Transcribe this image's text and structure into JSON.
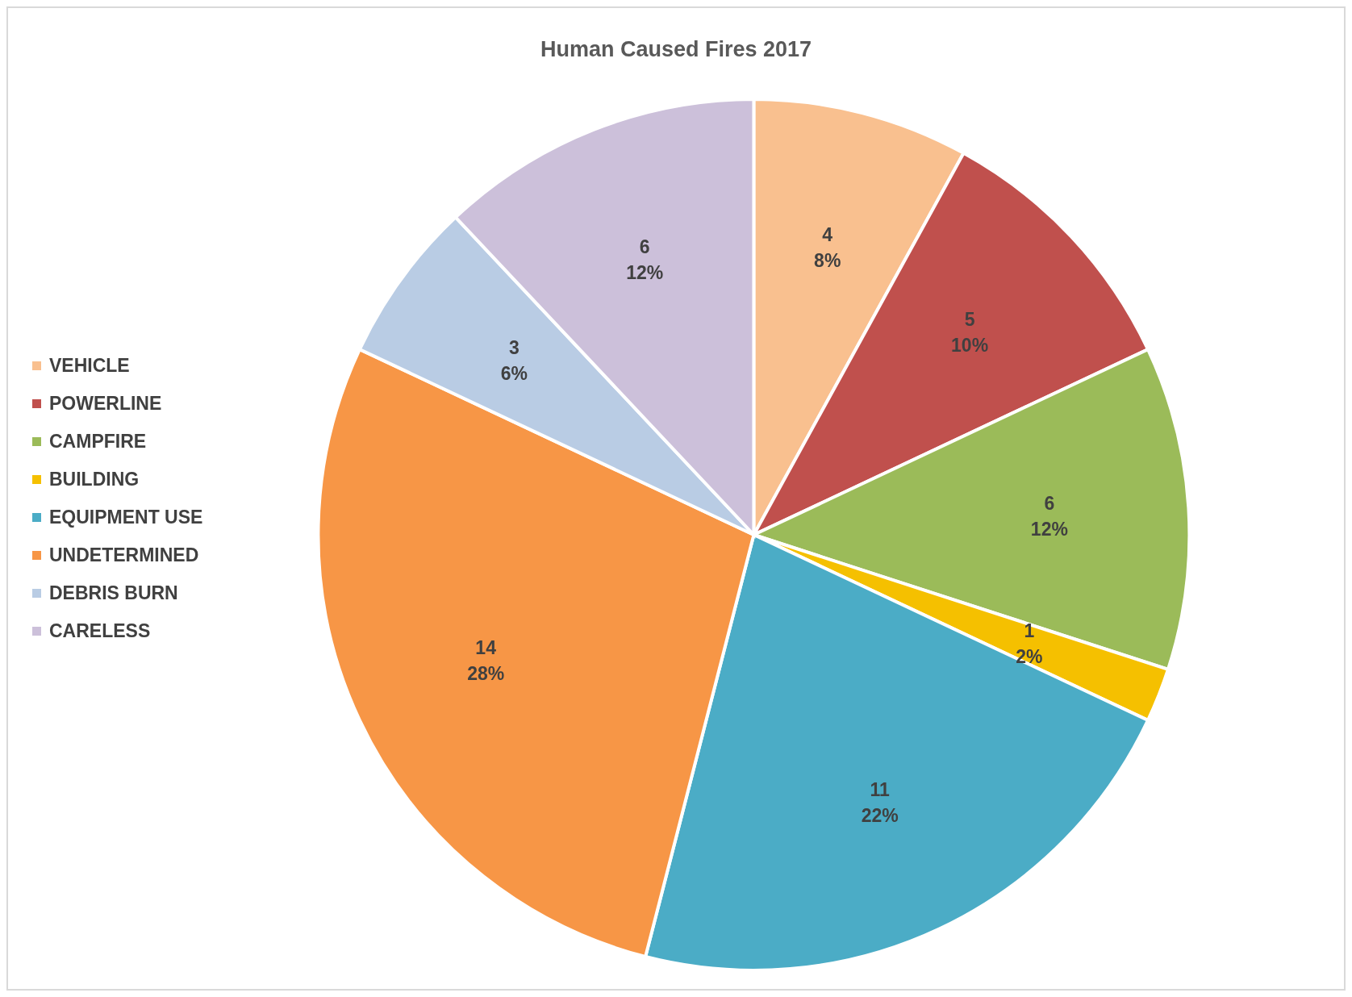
{
  "chart_data": {
    "type": "pie",
    "title": "Human Caused Fires 2017",
    "categories": [
      "VEHICLE",
      "POWERLINE",
      "CAMPFIRE",
      "BUILDING",
      "EQUIPMENT USE",
      "UNDETERMINED",
      "DEBRIS BURN",
      "CARELESS"
    ],
    "values": [
      4,
      5,
      6,
      1,
      11,
      14,
      3,
      6
    ],
    "colors": [
      "#f9c08f",
      "#c0504d",
      "#9bbb59",
      "#f5c000",
      "#4bacc6",
      "#f79646",
      "#b9cce4",
      "#ccc0da"
    ],
    "value_labels": [
      "4\n8%",
      "5\n10%",
      "6\n12%",
      "1\n2%",
      "11\n22%",
      "14\n28%",
      "3\n6%",
      "6\n12%"
    ],
    "legend": "left"
  }
}
